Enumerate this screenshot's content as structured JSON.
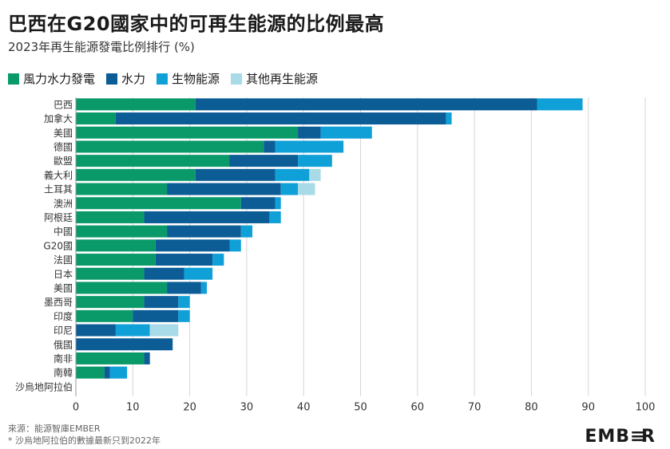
{
  "title": "巴西在G20國家中的可再生能源的比例最高",
  "subtitle": "2023年再生能源發電比例排行 (%)",
  "colors": {
    "wind_solar": "#0a9a6a",
    "hydro": "#0c5c96",
    "bio": "#10a0d8",
    "other": "#a8dae8"
  },
  "legend": [
    {
      "label": "風力水力發電",
      "color": "#0a9a6a"
    },
    {
      "label": "水力",
      "color": "#0c5c96"
    },
    {
      "label": "生物能源",
      "color": "#10a0d8"
    },
    {
      "label": "其他再生能源",
      "color": "#a8dae8"
    }
  ],
  "chart_data": {
    "type": "bar",
    "orientation": "horizontal",
    "stacked": true,
    "title": "巴西在G20國家中的可再生能源的比例最高",
    "subtitle": "2023年再生能源發電比例排行 (%)",
    "xlabel": "",
    "ylabel": "",
    "xlim": [
      0,
      100
    ],
    "x_ticks": [
      0,
      10,
      20,
      30,
      40,
      50,
      60,
      70,
      80,
      90,
      100
    ],
    "grid": true,
    "legend_position": "top-left",
    "categories": [
      "巴西",
      "加拿大",
      "美國",
      "德國",
      "歐盟",
      "義大利",
      "土耳其",
      "澳洲",
      "阿根廷",
      "中國",
      "G20國",
      "法國",
      "日本",
      "美國",
      "墨西哥",
      "印度",
      "印尼",
      "俄國",
      "南非",
      "南韓",
      "沙烏地阿拉伯"
    ],
    "series": [
      {
        "name": "風力水力發電",
        "values": [
          21,
          7,
          39,
          33,
          27,
          21,
          16,
          29,
          12,
          16,
          14,
          14,
          12,
          16,
          12,
          10,
          0,
          0,
          12,
          5,
          0
        ]
      },
      {
        "name": "水力",
        "values": [
          60,
          58,
          4,
          2,
          12,
          14,
          20,
          6,
          22,
          13,
          13,
          10,
          7,
          6,
          6,
          8,
          7,
          17,
          1,
          1,
          0
        ]
      },
      {
        "name": "生物能源",
        "values": [
          8,
          1,
          9,
          12,
          6,
          6,
          3,
          1,
          2,
          2,
          2,
          2,
          5,
          1,
          2,
          2,
          6,
          0,
          0,
          3,
          0
        ]
      },
      {
        "name": "其他再生能源",
        "values": [
          0,
          0,
          0,
          0,
          0,
          2,
          3,
          0,
          0,
          0,
          0,
          0,
          0,
          0,
          0,
          0,
          5,
          0,
          0,
          0,
          0
        ]
      }
    ]
  },
  "footer": {
    "source": "來源：能源智庫EMBER",
    "note": "* 沙烏地阿拉伯的數據最新只到2022年"
  },
  "logo": {
    "left": "EMB",
    "mark": "≡",
    "right": "R"
  }
}
